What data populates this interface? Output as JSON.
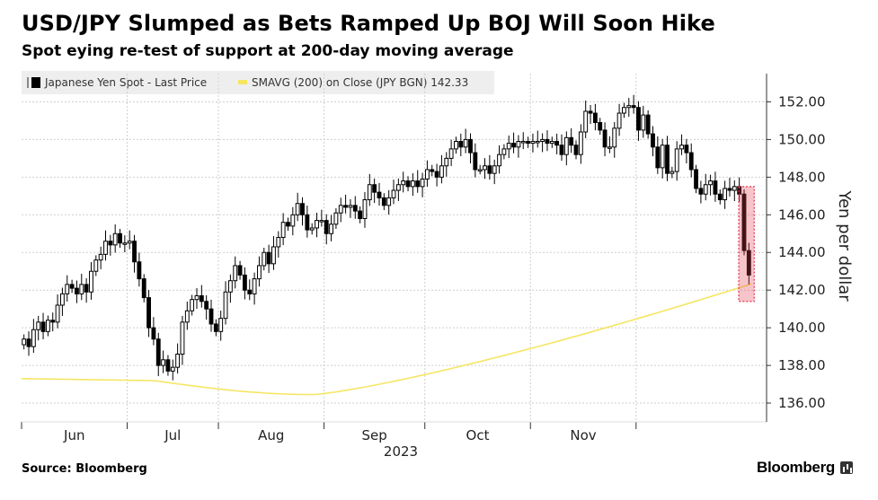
{
  "title": "USD/JPY Slumped as Bets Ramped Up BOJ Will Soon Hike",
  "subtitle": "Spot eying re-test of support at 200-day moving average",
  "source": "Source: Bloomberg",
  "brand": "Bloomberg",
  "chart_data": {
    "type": "candlestick",
    "legend": [
      {
        "label": "Japanese Yen Spot - Last Price",
        "color": "#000000"
      },
      {
        "label": "SMAVG (200)  on Close (JPY BGN) 142.33",
        "color": "#f5e663"
      }
    ],
    "ylabel": "Yen per dollar",
    "ylim": [
      135,
      153.5
    ],
    "yticks": [
      "136.00",
      "138.00",
      "140.00",
      "142.00",
      "144.00",
      "146.00",
      "148.00",
      "150.00",
      "152.00"
    ],
    "month_labels": [
      "Jun",
      "Jul",
      "Aug",
      "Sep",
      "Oct",
      "Nov"
    ],
    "year_label": "2023",
    "grid": true,
    "highlight": "last two candles",
    "closes": [
      139.4,
      139.0,
      139.9,
      140.3,
      139.8,
      140.4,
      140.3,
      141.2,
      141.8,
      142.3,
      142.1,
      141.8,
      142.3,
      141.9,
      143.0,
      143.6,
      143.9,
      144.6,
      144.4,
      145.0,
      144.5,
      144.5,
      144.6,
      143.5,
      142.6,
      141.6,
      140.0,
      139.4,
      138.0,
      138.3,
      137.7,
      137.9,
      138.6,
      140.3,
      140.9,
      141.5,
      141.7,
      141.4,
      141.0,
      140.2,
      139.8,
      140.5,
      141.9,
      142.5,
      143.3,
      142.8,
      142.0,
      141.8,
      142.6,
      143.3,
      144.0,
      143.4,
      144.3,
      144.8,
      145.6,
      145.4,
      146.0,
      146.6,
      146.0,
      145.2,
      145.3,
      145.7,
      145.7,
      145.0,
      145.5,
      146.1,
      146.5,
      146.4,
      146.5,
      146.2,
      145.8,
      146.8,
      147.6,
      147.2,
      146.9,
      146.5,
      146.9,
      147.3,
      147.6,
      147.8,
      147.5,
      147.8,
      147.5,
      147.9,
      148.4,
      148.3,
      148.0,
      148.6,
      149.0,
      149.5,
      149.9,
      149.6,
      150.0,
      149.3,
      148.4,
      148.4,
      148.6,
      148.2,
      148.6,
      149.2,
      149.5,
      149.8,
      149.6,
      149.9,
      149.9,
      149.8,
      149.9,
      149.9,
      150.0,
      149.8,
      149.9,
      149.7,
      149.2,
      150.1,
      149.7,
      149.2,
      150.4,
      151.5,
      151.4,
      150.9,
      150.5,
      149.6,
      149.6,
      150.6,
      151.4,
      151.7,
      151.8,
      151.7,
      150.5,
      151.3,
      150.3,
      149.6,
      148.5,
      149.7,
      148.2,
      148.3,
      149.5,
      149.7,
      149.3,
      148.4,
      147.4,
      147.1,
      147.6,
      147.8,
      147.1,
      146.8,
      147.4,
      147.3,
      147.5,
      147.1,
      144.1,
      142.8
    ]
  }
}
